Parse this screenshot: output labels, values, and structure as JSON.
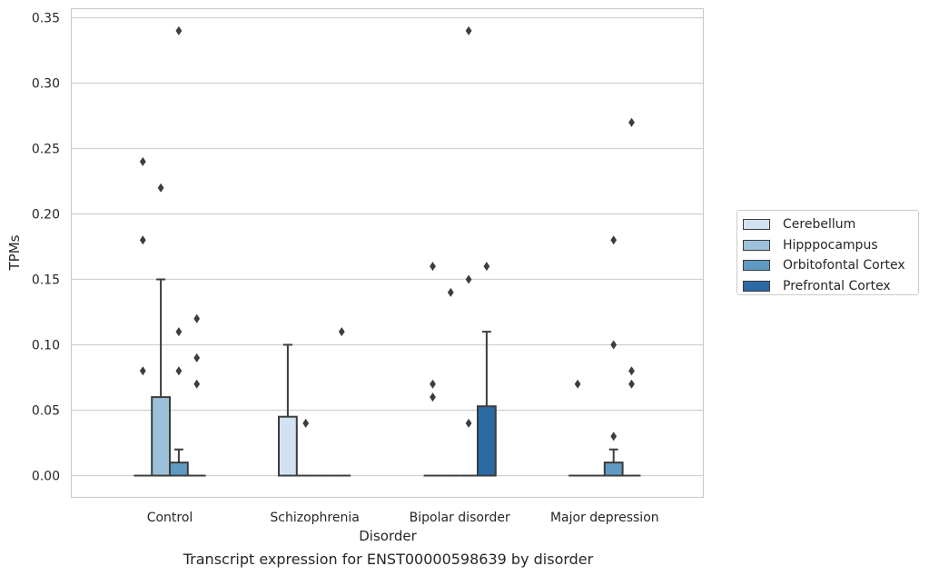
{
  "chart_data": {
    "type": "boxplot",
    "title": "Transcript expression for ENST00000598639 by disorder",
    "xlabel": "Disorder",
    "ylabel": "TPMs",
    "ylim": [
      -0.017,
      0.357
    ],
    "yticks": [
      0.0,
      0.05,
      0.1,
      0.15,
      0.2,
      0.25,
      0.3,
      0.35
    ],
    "ytick_labels": [
      "0.00",
      "0.05",
      "0.10",
      "0.15",
      "0.20",
      "0.25",
      "0.30",
      "0.35"
    ],
    "categories": [
      "Control",
      "Schizophrenia",
      "Bipolar disorder",
      "Major depression"
    ],
    "grid": true,
    "legend_position": "right",
    "series": [
      {
        "name": "Cerebellum",
        "color": "#d2e2f0",
        "boxes": [
          {
            "q1": 0,
            "median": 0,
            "q3": 0,
            "whisker_low": 0,
            "whisker_high": 0,
            "outliers": [
              0.08,
              0.18,
              0.24
            ]
          },
          {
            "q1": 0,
            "median": 0,
            "q3": 0.045,
            "whisker_low": 0,
            "whisker_high": 0.1,
            "outliers": []
          },
          {
            "q1": 0,
            "median": 0,
            "q3": 0,
            "whisker_low": 0,
            "whisker_high": 0,
            "outliers": [
              0.06,
              0.07,
              0.16
            ]
          },
          {
            "q1": 0,
            "median": 0,
            "q3": 0,
            "whisker_low": 0,
            "whisker_high": 0,
            "outliers": [
              0.07
            ]
          }
        ]
      },
      {
        "name": "Hipppocampus",
        "color": "#9dc1da",
        "boxes": [
          {
            "q1": 0,
            "median": 0,
            "q3": 0.06,
            "whisker_low": 0,
            "whisker_high": 0.15,
            "outliers": [
              0.22
            ]
          },
          {
            "q1": 0,
            "median": 0,
            "q3": 0,
            "whisker_low": 0,
            "whisker_high": 0,
            "outliers": [
              0.04
            ]
          },
          {
            "q1": 0,
            "median": 0,
            "q3": 0,
            "whisker_low": 0,
            "whisker_high": 0,
            "outliers": [
              0.14
            ]
          },
          {
            "q1": 0,
            "median": 0,
            "q3": 0,
            "whisker_low": 0,
            "whisker_high": 0,
            "outliers": []
          }
        ]
      },
      {
        "name": "Orbitofontal Cortex",
        "color": "#5f9ac2",
        "boxes": [
          {
            "q1": 0,
            "median": 0,
            "q3": 0.01,
            "whisker_low": 0,
            "whisker_high": 0.02,
            "outliers": [
              0.08,
              0.11,
              0.34
            ]
          },
          {
            "q1": 0,
            "median": 0,
            "q3": 0,
            "whisker_low": 0,
            "whisker_high": 0,
            "outliers": []
          },
          {
            "q1": 0,
            "median": 0,
            "q3": 0,
            "whisker_low": 0,
            "whisker_high": 0,
            "outliers": [
              0.04,
              0.15,
              0.34
            ]
          },
          {
            "q1": 0,
            "median": 0,
            "q3": 0.01,
            "whisker_low": 0,
            "whisker_high": 0.02,
            "outliers": [
              0.03,
              0.1,
              0.18
            ]
          }
        ]
      },
      {
        "name": "Prefrontal Cortex",
        "color": "#2c6aa6",
        "boxes": [
          {
            "q1": 0,
            "median": 0,
            "q3": 0,
            "whisker_low": 0,
            "whisker_high": 0,
            "outliers": [
              0.07,
              0.09,
              0.12
            ]
          },
          {
            "q1": 0,
            "median": 0,
            "q3": 0,
            "whisker_low": 0,
            "whisker_high": 0,
            "outliers": [
              0.11
            ]
          },
          {
            "q1": 0,
            "median": 0,
            "q3": 0.053,
            "whisker_low": 0,
            "whisker_high": 0.11,
            "outliers": [
              0.16
            ]
          },
          {
            "q1": 0,
            "median": 0,
            "q3": 0,
            "whisker_low": 0,
            "whisker_high": 0,
            "outliers": [
              0.07,
              0.08,
              0.27
            ]
          }
        ]
      }
    ]
  }
}
